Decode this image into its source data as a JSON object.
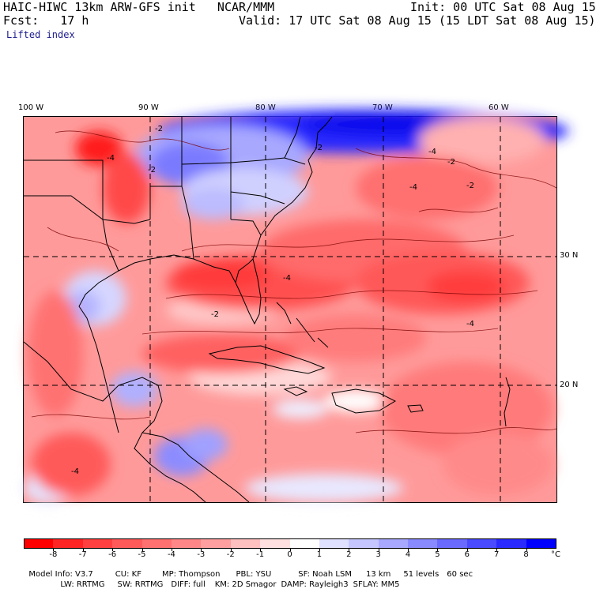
{
  "header": {
    "model_title": "HAIC-HIWC 13km ARW-GFS init   NCAR/MMM",
    "init_text": "Init: 00 UTC Sat 08 Aug 15",
    "fcst_text": "Fcst:   17 h",
    "valid_text": "Valid: 17 UTC Sat 08 Aug 15 (15 LDT Sat 08 Aug 15)",
    "field_name": "Lifted index"
  },
  "map": {
    "lon_labels": [
      "100 W",
      "90 W",
      "80 W",
      "70 W",
      "60 W"
    ],
    "lat_labels": [
      "30 N",
      "20 N"
    ],
    "contour_labels": [
      "-2",
      "-4",
      "-2",
      "-4",
      "-2",
      "-2",
      "-4",
      "-4",
      "-2",
      "-2",
      "-4",
      "-4"
    ]
  },
  "colorbar": {
    "labels": [
      "-8",
      "-7",
      "-6",
      "-5",
      "-4",
      "-3",
      "-2",
      "-1",
      "0",
      "1",
      "2",
      "3",
      "4",
      "5",
      "6",
      "7",
      "8"
    ],
    "unit": "°C",
    "colors": [
      "#ff0000",
      "#ff2525",
      "#ff4040",
      "#ff5a5a",
      "#ff7070",
      "#ff8787",
      "#ff9f9f",
      "#ffc0c0",
      "#ffe0e0",
      "#ffffff",
      "#e0e0ff",
      "#c6c6ff",
      "#a8a8ff",
      "#8a8aff",
      "#6a6aff",
      "#4a4aff",
      "#2a2aff",
      "#0000ff"
    ]
  },
  "footer": {
    "line1": [
      "Model Info: V3.7",
      "CU: KF",
      "MP: Thompson",
      "PBL: YSU",
      "SF: Noah LSM",
      "13 km",
      "51 levels",
      "60 sec"
    ],
    "line2": [
      "LW: RRTMG",
      "SW: RRTMG",
      "DIFF: full",
      "KM: 2D Smagor",
      "DAMP: Rayleigh3",
      "SFLAY: MM5"
    ]
  }
}
